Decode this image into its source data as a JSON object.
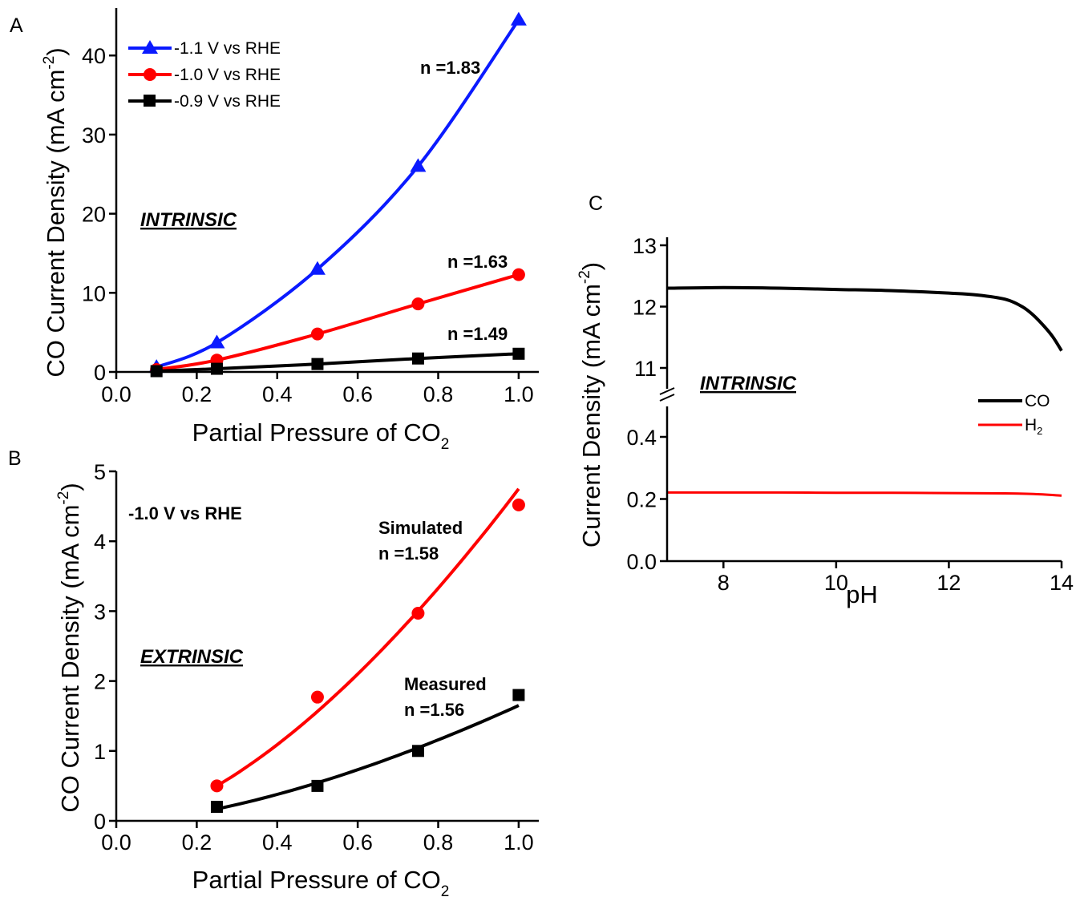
{
  "charts": [
    {
      "id": "A",
      "panel_label": "A",
      "type": "line",
      "xlabel": "Partial Pressure of CO2",
      "ylabel": "CO Current Density (mA cm-2)",
      "xlim": [
        0.0,
        1.05
      ],
      "ylim": [
        0,
        46
      ],
      "xticks": [
        0.0,
        0.2,
        0.4,
        0.6,
        0.8,
        1.0
      ],
      "xtick_labels": [
        "0.0",
        "0.2",
        "0.4",
        "0.6",
        "0.8",
        "1.0"
      ],
      "yticks": [
        0,
        10,
        20,
        30,
        40
      ],
      "ytick_labels": [
        "0",
        "10",
        "20",
        "30",
        "40"
      ],
      "grid": false,
      "legend_position": "top-left",
      "regime": "INTRINSIC",
      "series": [
        {
          "name": "-1.1 V vs RHE",
          "color": "#0a1aff",
          "marker": "triangle",
          "x": [
            0.1,
            0.25,
            0.5,
            0.75,
            1.0
          ],
          "y": [
            0.6,
            3.7,
            13.0,
            26.0,
            44.5
          ],
          "fit_n": 1.83,
          "annotation": "n =1.83"
        },
        {
          "name": "-1.0 V vs RHE",
          "color": "#ff0000",
          "marker": "circle",
          "x": [
            0.1,
            0.25,
            0.5,
            0.75,
            1.0
          ],
          "y": [
            0.3,
            1.5,
            4.8,
            8.6,
            12.3
          ],
          "fit_n": 1.63,
          "annotation": "n =1.63"
        },
        {
          "name": "-0.9 V vs RHE",
          "color": "#000000",
          "marker": "square",
          "x": [
            0.1,
            0.25,
            0.5,
            0.75,
            1.0
          ],
          "y": [
            0.1,
            0.4,
            1.0,
            1.7,
            2.3
          ],
          "fit_n": 1.49,
          "annotation": "n =1.49"
        }
      ]
    },
    {
      "id": "B",
      "panel_label": "B",
      "type": "scatter",
      "xlabel": "Partial Pressure of CO2",
      "ylabel": "CO Current Density (mA cm-2)",
      "xlim": [
        0.0,
        1.05
      ],
      "ylim": [
        0,
        5
      ],
      "xticks": [
        0.0,
        0.2,
        0.4,
        0.6,
        0.8,
        1.0
      ],
      "xtick_labels": [
        "0.0",
        "0.2",
        "0.4",
        "0.6",
        "0.8",
        "1.0"
      ],
      "yticks": [
        0,
        1,
        2,
        3,
        4,
        5
      ],
      "ytick_labels": [
        "0",
        "1",
        "2",
        "3",
        "4",
        "5"
      ],
      "grid": false,
      "condition": "-1.0 V vs RHE",
      "regime": "EXTRINSIC",
      "series": [
        {
          "name": "Simulated",
          "color": "#ff0000",
          "marker": "circle",
          "x": [
            0.25,
            0.5,
            0.75,
            1.0
          ],
          "y": [
            0.5,
            1.77,
            2.97,
            4.52
          ],
          "fit_n": 1.58,
          "fit_range": [
            0.25,
            1.0
          ],
          "fit_end": [
            0.5,
            4.75
          ],
          "label_line1": "Simulated",
          "label_line2": "n =1.58"
        },
        {
          "name": "Measured",
          "color": "#000000",
          "marker": "square",
          "x": [
            0.25,
            0.5,
            0.75,
            1.0
          ],
          "y": [
            0.2,
            0.5,
            1.0,
            1.8
          ],
          "fit_n": 1.56,
          "fit_range": [
            0.25,
            1.0
          ],
          "fit_end": [
            0.17,
            1.65
          ],
          "label_line1": "Measured",
          "label_line2": "n =1.56"
        }
      ]
    },
    {
      "id": "C",
      "panel_label": "C",
      "type": "line",
      "xlabel": "pH",
      "ylabel": "Current Density (mA cm-2)",
      "xlim": [
        7,
        14
      ],
      "xticks": [
        8,
        10,
        12,
        14
      ],
      "xtick_labels": [
        "8",
        "10",
        "12",
        "14"
      ],
      "y_axis_broken": true,
      "ylim_lower": [
        0.0,
        0.5
      ],
      "ylim_upper": [
        10.7,
        13.0
      ],
      "yticks_lower": [
        0.0,
        0.2,
        0.4
      ],
      "ytick_labels_lower": [
        "0.0",
        "0.2",
        "0.4"
      ],
      "yticks_upper": [
        11,
        12,
        13
      ],
      "ytick_labels_upper": [
        "11",
        "12",
        "13"
      ],
      "grid": false,
      "legend_position": "right",
      "regime": "INTRINSIC",
      "series": [
        {
          "name": "CO",
          "color": "#000000",
          "segment": "upper",
          "x": [
            7.0,
            8.0,
            9.0,
            10.0,
            11.0,
            12.0,
            12.5,
            13.0,
            13.3,
            13.5,
            13.7,
            13.85,
            14.0
          ],
          "y": [
            12.3,
            12.31,
            12.3,
            12.28,
            12.26,
            12.22,
            12.19,
            12.12,
            12.0,
            11.86,
            11.67,
            11.5,
            11.28
          ]
        },
        {
          "name": "H2",
          "color": "#ff0000",
          "segment": "lower",
          "x": [
            7.0,
            8.0,
            9.0,
            10.0,
            11.0,
            12.0,
            13.0,
            13.5,
            14.0
          ],
          "y": [
            0.221,
            0.221,
            0.221,
            0.22,
            0.22,
            0.219,
            0.218,
            0.216,
            0.211
          ]
        }
      ]
    }
  ]
}
